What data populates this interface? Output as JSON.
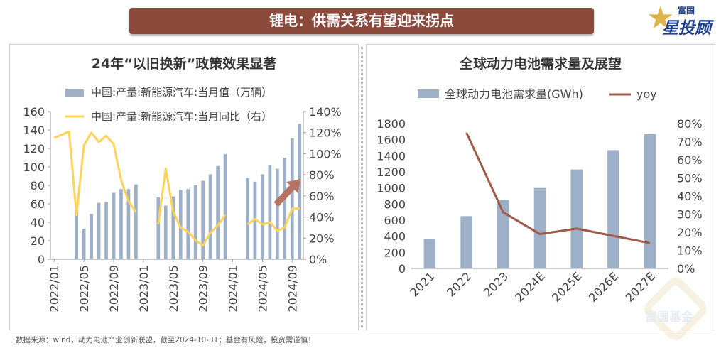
{
  "header": {
    "title": "锂电：供需关系有望迎来拐点"
  },
  "logo": {
    "line1": "富国",
    "line2": "星投顾"
  },
  "watermark": {
    "text": "富国基金"
  },
  "footer": {
    "source": "数据来源：wind，动力电池产业创新联盟，截至2024-10-31；基金有风险，投资需谨慎！"
  },
  "chart_data": [
    {
      "type": "bar+line",
      "title": "24年“以旧换新”政策效果显著",
      "legend_placement": "top",
      "grid": false,
      "colors": {
        "bar": "#9db0c8",
        "line": "#ffd25a",
        "arrow": "#b5735f"
      },
      "x_ticks": [
        "2022/01",
        "2022/05",
        "2022/09",
        "2023/01",
        "2023/05",
        "2023/09",
        "2024/01",
        "2024/05",
        "2024/09"
      ],
      "left_axis": {
        "ylim": [
          0,
          160
        ],
        "ticks": [
          "0",
          "20",
          "40",
          "60",
          "80",
          "100",
          "120",
          "140",
          "160"
        ]
      },
      "right_axis": {
        "ylim": [
          0,
          140
        ],
        "ticks": [
          "0%",
          "20%",
          "40%",
          "60%",
          "80%",
          "100%",
          "120%",
          "140%"
        ]
      },
      "months": [
        "2022/01",
        "2022/02",
        "2022/03",
        "2022/04",
        "2022/05",
        "2022/06",
        "2022/07",
        "2022/08",
        "2022/09",
        "2022/10",
        "2022/11",
        "2022/12",
        "2023/01",
        "2023/02",
        "2023/03",
        "2023/04",
        "2023/05",
        "2023/06",
        "2023/07",
        "2023/08",
        "2023/09",
        "2023/10",
        "2023/11",
        "2023/12",
        "2024/01",
        "2024/02",
        "2024/03",
        "2024/04",
        "2024/05",
        "2024/06",
        "2024/07",
        "2024/08",
        "2024/09",
        "2024/10"
      ],
      "series": [
        {
          "name": "中国:产量:新能源汽车:当月值（万辆）",
          "kind": "bar",
          "axis": "left",
          "values": [
            null,
            null,
            null,
            51,
            33,
            49,
            61,
            62,
            72,
            76,
            76,
            81,
            null,
            null,
            67,
            58,
            68,
            75,
            76,
            80,
            85,
            92,
            101,
            114,
            null,
            null,
            88,
            84,
            92,
            102,
            98,
            110,
            131,
            147
          ]
        },
        {
          "name": "中国:产量:新能源汽车:当月同比（右）",
          "kind": "line",
          "axis": "right",
          "values": [
            115,
            118,
            121,
            42,
            108,
            120,
            111,
            117,
            109,
            75,
            55,
            45,
            null,
            null,
            33,
            86,
            45,
            30,
            26,
            18,
            13,
            25,
            32,
            42,
            null,
            null,
            33,
            38,
            33,
            35,
            27,
            30,
            48,
            48
          ]
        }
      ]
    },
    {
      "type": "bar+line",
      "title": "全球动力电池需求量及展望",
      "legend_placement": "top",
      "grid": false,
      "colors": {
        "bar": "#9db0c8",
        "line": "#a05a48"
      },
      "categories": [
        "2021",
        "2022",
        "2023",
        "2024E",
        "2025E",
        "2026E",
        "2027E"
      ],
      "left_axis": {
        "ylim": [
          0,
          1800
        ],
        "ticks": [
          "0",
          "200",
          "400",
          "600",
          "800",
          "1000",
          "1200",
          "1400",
          "1600",
          "1800"
        ]
      },
      "right_axis": {
        "ylim": [
          0,
          80
        ],
        "ticks": [
          "0%",
          "10%",
          "20%",
          "30%",
          "40%",
          "50%",
          "60%",
          "70%",
          "80%"
        ]
      },
      "series": [
        {
          "name": "全球动力电池需求量(GWh)",
          "kind": "bar",
          "axis": "left",
          "values": [
            370,
            650,
            850,
            1000,
            1230,
            1470,
            1670
          ]
        },
        {
          "name": "yoy",
          "kind": "line",
          "axis": "right",
          "values": [
            null,
            75,
            31,
            19,
            22,
            18,
            14
          ]
        }
      ]
    }
  ]
}
